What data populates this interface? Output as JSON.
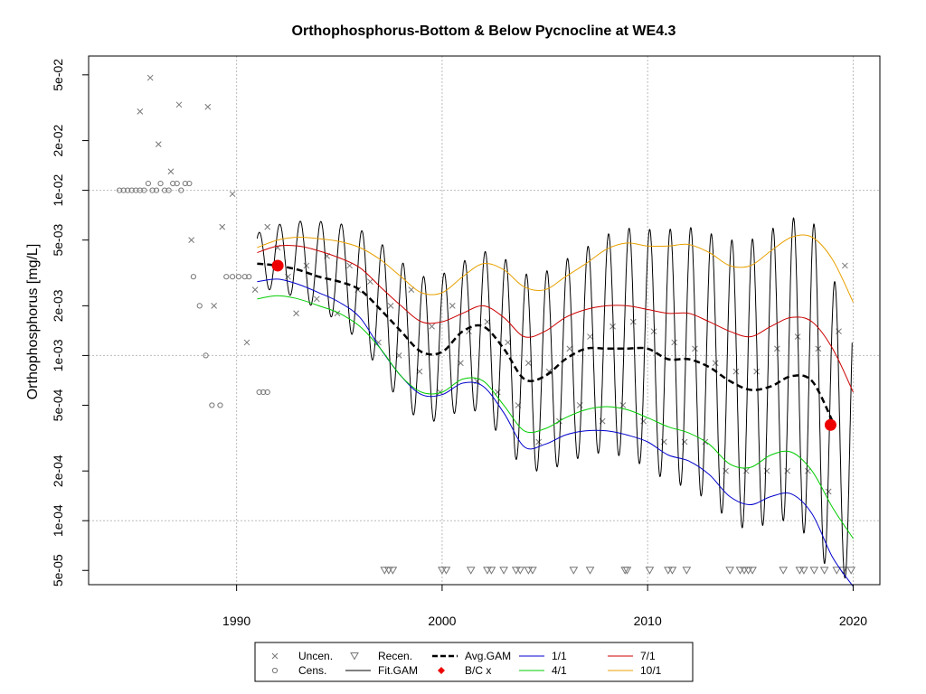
{
  "chart_data": {
    "type": "scatter",
    "title": "Orthophosphorus-Bottom & Below Pycnocline at WE4.3",
    "xlabel": "",
    "ylabel": "Orthophosphorus [mg/L]",
    "xlim": [
      1982.8,
      2021.3
    ],
    "ylim": [
      4.1e-05,
      0.065
    ],
    "y_scale": "log",
    "grid": true,
    "x_ticks": [
      1990,
      2000,
      2010,
      2020
    ],
    "x_tick_labels": [
      "1990",
      "2000",
      "2010",
      "2020"
    ],
    "y_ticks": [
      5e-05,
      0.0001,
      0.0002,
      0.0005,
      0.001,
      0.002,
      0.005,
      0.01,
      0.02,
      0.05
    ],
    "y_tick_labels": [
      "5e-05",
      "1e-04",
      "2e-04",
      "5e-04",
      "1e-03",
      "2e-03",
      "5e-03",
      "1e-02",
      "2e-02",
      "5e-02"
    ],
    "legend_position": "bottom-center",
    "legend": [
      {
        "label": "Uncen.",
        "symbol": "x",
        "color": "#777777"
      },
      {
        "label": "Recen.",
        "symbol": "triangle-down",
        "color": "#777777"
      },
      {
        "label": "Avg.GAM",
        "symbol": "dashed-line",
        "color": "#000000"
      },
      {
        "label": "1/1",
        "symbol": "line",
        "color": "#0000cc"
      },
      {
        "label": "7/1",
        "symbol": "line",
        "color": "#cc0000"
      },
      {
        "label": "Cens.",
        "symbol": "circle",
        "color": "#777777"
      },
      {
        "label": "Fit.GAM",
        "symbol": "line",
        "color": "#000000"
      },
      {
        "label": "B/C x",
        "symbol": "diamond",
        "color": "#ee0000"
      },
      {
        "label": "4/1",
        "symbol": "line",
        "color": "#00cc00"
      },
      {
        "label": "10/1",
        "symbol": "line",
        "color": "#e8a000"
      }
    ],
    "series": [
      {
        "name": "Avg.GAM",
        "color": "#000000",
        "x": [
          1991,
          1992,
          1993,
          1994,
          1995,
          1996,
          1997,
          1998,
          1999,
          2000,
          2001,
          2002,
          2003,
          2004,
          2005,
          2006,
          2007,
          2008,
          2009,
          2010,
          2011,
          2012,
          2013,
          2014,
          2015,
          2016,
          2017,
          2018,
          2019
        ],
        "y": [
          0.0036,
          0.0035,
          0.0033,
          0.003,
          0.0028,
          0.0025,
          0.0019,
          0.0014,
          0.00105,
          0.00105,
          0.0014,
          0.0015,
          0.0011,
          0.00072,
          0.00075,
          0.00095,
          0.0011,
          0.0011,
          0.0011,
          0.0011,
          0.00095,
          0.00095,
          0.00085,
          0.0007,
          0.00062,
          0.00065,
          0.00075,
          0.0007,
          0.0004
        ]
      },
      {
        "name": "1/1",
        "color": "#0000cc",
        "x": [
          1991,
          1992,
          1993,
          1994,
          1995,
          1996,
          1997,
          1998,
          1999,
          2000,
          2001,
          2002,
          2003,
          2004,
          2005,
          2006,
          2007,
          2008,
          2009,
          2010,
          2011,
          2012,
          2013,
          2014,
          2015,
          2016,
          2017,
          2018,
          2019,
          2020
        ],
        "y": [
          0.0028,
          0.0029,
          0.0027,
          0.0024,
          0.0021,
          0.0017,
          0.0011,
          0.00075,
          0.00058,
          0.00058,
          0.00068,
          0.00065,
          0.00045,
          0.00028,
          0.00029,
          0.00033,
          0.00035,
          0.00035,
          0.00033,
          0.0003,
          0.00025,
          0.00023,
          0.00019,
          0.00014,
          0.000125,
          0.00014,
          0.000145,
          0.00011,
          6e-05,
          4e-05
        ]
      },
      {
        "name": "4/1",
        "color": "#00cc00",
        "x": [
          1991,
          1992,
          1993,
          1994,
          1995,
          1996,
          1997,
          1998,
          1999,
          2000,
          2001,
          2002,
          2003,
          2004,
          2005,
          2006,
          2007,
          2008,
          2009,
          2010,
          2011,
          2012,
          2013,
          2014,
          2015,
          2016,
          2017,
          2018,
          2019,
          2020
        ],
        "y": [
          0.0022,
          0.0023,
          0.0022,
          0.002,
          0.0018,
          0.0015,
          0.0011,
          0.00075,
          0.0006,
          0.0006,
          0.00072,
          0.0007,
          0.0005,
          0.00035,
          0.00036,
          0.00042,
          0.00047,
          0.00049,
          0.00047,
          0.00042,
          0.00037,
          0.00034,
          0.00029,
          0.00022,
          0.00021,
          0.00025,
          0.00026,
          0.0002,
          0.00012,
          7.8e-05
        ]
      },
      {
        "name": "7/1",
        "color": "#cc0000",
        "x": [
          1991,
          1992,
          1993,
          1994,
          1995,
          1996,
          1997,
          1998,
          1999,
          2000,
          2001,
          2002,
          2003,
          2004,
          2005,
          2006,
          2007,
          2008,
          2009,
          2010,
          2011,
          2012,
          2013,
          2014,
          2015,
          2016,
          2017,
          2018,
          2019,
          2020
        ],
        "y": [
          0.0042,
          0.0046,
          0.0046,
          0.0043,
          0.0039,
          0.0034,
          0.0026,
          0.002,
          0.0016,
          0.0016,
          0.0018,
          0.002,
          0.0017,
          0.0013,
          0.0014,
          0.0017,
          0.0019,
          0.002,
          0.002,
          0.0019,
          0.0018,
          0.0018,
          0.0016,
          0.0014,
          0.0013,
          0.0015,
          0.0017,
          0.0016,
          0.0011,
          0.0006
        ]
      },
      {
        "name": "10/1",
        "color": "#e8a000",
        "x": [
          1991,
          1992,
          1993,
          1994,
          1995,
          1996,
          1997,
          1998,
          1999,
          2000,
          2001,
          2002,
          2003,
          2004,
          2005,
          2006,
          2007,
          2008,
          2009,
          2010,
          2011,
          2012,
          2013,
          2014,
          2015,
          2016,
          2017,
          2018,
          2019,
          2020
        ],
        "y": [
          0.0045,
          0.005,
          0.0052,
          0.0051,
          0.0049,
          0.0045,
          0.0038,
          0.003,
          0.0024,
          0.0024,
          0.003,
          0.0036,
          0.0033,
          0.0026,
          0.0025,
          0.003,
          0.0036,
          0.0044,
          0.0048,
          0.0046,
          0.0046,
          0.0047,
          0.0042,
          0.0035,
          0.0035,
          0.0043,
          0.0052,
          0.0052,
          0.0038,
          0.0021
        ]
      },
      {
        "name": "Fit.GAM",
        "color": "#000000",
        "seasonal": true,
        "x": [
          1991,
          1992,
          1993,
          1994,
          1995,
          1996,
          1997,
          1998,
          1999,
          2000,
          2001,
          2002,
          2003,
          2004,
          2005,
          2006,
          2007,
          2008,
          2009,
          2010,
          2011,
          2012,
          2013,
          2014,
          2015,
          2016,
          2017,
          2018,
          2019
        ],
        "y_max": [
          0.0055,
          0.0062,
          0.0065,
          0.0065,
          0.0063,
          0.0058,
          0.0048,
          0.0037,
          0.003,
          0.0031,
          0.0037,
          0.0043,
          0.0039,
          0.0031,
          0.0032,
          0.0038,
          0.0045,
          0.0054,
          0.0059,
          0.0058,
          0.0058,
          0.006,
          0.0055,
          0.005,
          0.005,
          0.0058,
          0.0068,
          0.0068,
          0.0028
        ],
        "y_min": [
          0.0025,
          0.0025,
          0.0022,
          0.0019,
          0.0016,
          0.0012,
          0.0008,
          0.0005,
          0.0004,
          0.0004,
          0.00048,
          0.00045,
          0.0003,
          0.0002,
          0.0002,
          0.00022,
          0.00025,
          0.00026,
          0.00024,
          0.00021,
          0.00017,
          0.00016,
          0.00013,
          0.0001,
          8.5e-05,
          0.0001,
          0.0001,
          7.5e-05,
          4.5e-05
        ]
      },
      {
        "name": "B/C x",
        "color": "#ee0000",
        "x": [
          1992,
          2018.9
        ],
        "y": [
          0.0035,
          0.00038
        ]
      },
      {
        "name": "Uncen.",
        "color": "#777777",
        "x": [
          1985.3,
          1985.8,
          1986.2,
          1986.8,
          1987.2,
          1987.8,
          1988.6,
          1988.9,
          1989.3,
          1989.8,
          1990.5,
          1990.9,
          1991.5,
          1992.0,
          1992.5,
          1992.9,
          1993.4,
          1993.9,
          1994.4,
          1994.9,
          1995.5,
          1995.9,
          1996.5,
          1996.9,
          1997.5,
          1997.9,
          1998.5,
          1998.9,
          1999.5,
          1999.9,
          2000.5,
          2000.9,
          2001.3,
          2001.7,
          2002.2,
          2002.7,
          2003.2,
          2003.7,
          2004.2,
          2004.7,
          2005.2,
          2005.7,
          2006.2,
          2006.7,
          2007.2,
          2007.8,
          2008.3,
          2008.8,
          2009.3,
          2009.8,
          2010.3,
          2010.8,
          2011.3,
          2011.8,
          2012.3,
          2012.8,
          2013.3,
          2013.8,
          2014.3,
          2014.8,
          2015.3,
          2015.8,
          2016.3,
          2016.8,
          2017.3,
          2017.8,
          2018.3,
          2018.8,
          2019.3,
          2019.6
        ],
        "y": [
          0.03,
          0.048,
          0.019,
          0.013,
          0.033,
          0.005,
          0.032,
          0.002,
          0.006,
          0.0095,
          0.0012,
          0.0025,
          0.006,
          0.0045,
          0.003,
          0.0018,
          0.0035,
          0.0022,
          0.004,
          0.0018,
          0.0035,
          0.0025,
          0.0028,
          0.0012,
          0.002,
          0.001,
          0.0025,
          0.0008,
          0.0015,
          0.0006,
          0.002,
          0.0009,
          0.0014,
          0.0007,
          0.0016,
          0.0006,
          0.0012,
          0.0005,
          0.0009,
          0.0003,
          0.0008,
          0.0004,
          0.0011,
          0.0005,
          0.0013,
          0.0004,
          0.0015,
          0.0005,
          0.0016,
          0.0004,
          0.0014,
          0.0003,
          0.0012,
          0.0003,
          0.0011,
          0.0003,
          0.0009,
          0.0002,
          0.0008,
          0.0002,
          0.0008,
          0.0002,
          0.0011,
          0.0002,
          0.0013,
          0.0002,
          0.0011,
          0.00015,
          0.0014,
          0.0035
        ]
      },
      {
        "name": "Cens.",
        "color": "#777777",
        "x": [
          1984.3,
          1984.5,
          1984.7,
          1984.9,
          1985.1,
          1985.3,
          1985.5,
          1985.7,
          1985.9,
          1986.1,
          1986.3,
          1986.5,
          1986.7,
          1986.9,
          1987.1,
          1987.3,
          1987.5,
          1987.7,
          1987.9,
          1988.2,
          1988.5,
          1988.8,
          1989.2,
          1989.5,
          1989.8,
          1990.1,
          1990.4,
          1990.6,
          1991.1,
          1991.3,
          1991.5
        ],
        "y": [
          0.01,
          0.01,
          0.01,
          0.01,
          0.01,
          0.01,
          0.01,
          0.011,
          0.01,
          0.01,
          0.011,
          0.01,
          0.01,
          0.011,
          0.011,
          0.01,
          0.011,
          0.011,
          0.003,
          0.002,
          0.001,
          0.0005,
          0.0005,
          0.003,
          0.003,
          0.003,
          0.003,
          0.003,
          0.0006,
          0.0006,
          0.0006
        ]
      },
      {
        "name": "Recen.",
        "color": "#777777",
        "x": [
          1997.2,
          1997.4,
          1997.6,
          2000.0,
          2000.2,
          2001.4,
          2002.2,
          2002.4,
          2003.0,
          2003.6,
          2003.8,
          2004.2,
          2004.4,
          2006.4,
          2007.2,
          2008.9,
          2009.0,
          2010.1,
          2011.0,
          2011.2,
          2011.9,
          2014.0,
          2014.5,
          2014.7,
          2014.9,
          2015.1,
          2016.6,
          2017.4,
          2017.6,
          2018.1,
          2018.6,
          2019.2,
          2019.5,
          2019.9
        ],
        "y": [
          5e-05,
          5e-05,
          5e-05,
          5e-05,
          5e-05,
          5e-05,
          5e-05,
          5e-05,
          5e-05,
          5e-05,
          5e-05,
          5e-05,
          5e-05,
          5e-05,
          5e-05,
          5e-05,
          5e-05,
          5e-05,
          5e-05,
          5e-05,
          5e-05,
          5e-05,
          5e-05,
          5e-05,
          5e-05,
          5e-05,
          5e-05,
          5e-05,
          5e-05,
          5e-05,
          5e-05,
          5e-05,
          5e-05,
          5e-05
        ]
      }
    ]
  }
}
